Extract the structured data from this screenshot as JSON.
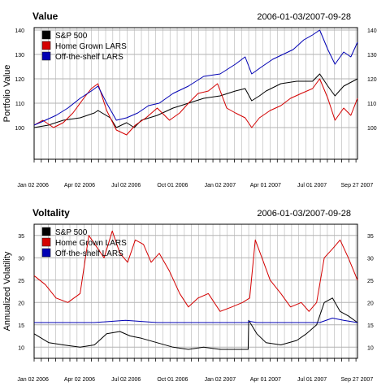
{
  "colors": {
    "sp500": "#000000",
    "home_grown": "#d40000",
    "off_the_shelf": "#0000b4",
    "grid": "#b3b3b3",
    "frame": "#000000"
  },
  "chart_data": [
    {
      "type": "line",
      "title": "Value",
      "date_range": "2006-01-03/2007-09-28",
      "ylabel": "Portfolio Value",
      "xlabel": "",
      "x_tick_labels": [
        "Jan 02 2006",
        "Apr 02 2006",
        "Jul 02 2006",
        "Oct 01 2006",
        "Jan 02 2007",
        "Apr 01 2007",
        "Jul 01 2007",
        "Sep 27 2007"
      ],
      "x_ticks": [
        "2006-01-02",
        "2006-04-02",
        "2006-07-02",
        "2006-10-01",
        "2007-01-02",
        "2007-04-01",
        "2007-07-01",
        "2007-09-27"
      ],
      "xlim": [
        "2006-01-03",
        "2007-09-28"
      ],
      "ylim": [
        87,
        141
      ],
      "y_ticks": [
        100,
        110,
        120,
        130,
        140
      ],
      "grid": true,
      "legend_position": "top-left",
      "series": [
        {
          "name": "S&P 500",
          "color_key": "sp500",
          "x": [
            "2006-01-03",
            "2006-01-31",
            "2006-03-01",
            "2006-04-03",
            "2006-05-01",
            "2006-05-08",
            "2006-06-01",
            "2006-06-13",
            "2006-07-03",
            "2006-07-18",
            "2006-08-01",
            "2006-09-01",
            "2006-10-02",
            "2006-11-01",
            "2006-12-01",
            "2007-01-02",
            "2007-02-01",
            "2007-02-20",
            "2007-03-05",
            "2007-03-20",
            "2007-04-02",
            "2007-05-01",
            "2007-06-01",
            "2007-07-02",
            "2007-07-16",
            "2007-08-01",
            "2007-08-15",
            "2007-09-01",
            "2007-09-28"
          ],
          "y": [
            100,
            101,
            103,
            104,
            106,
            107,
            104,
            100,
            102,
            100,
            103,
            105,
            108,
            110,
            112,
            113,
            115,
            116,
            111,
            113,
            115,
            118,
            119,
            119,
            122,
            117,
            113,
            117,
            120
          ]
        },
        {
          "name": "Home Grown LARS",
          "color_key": "home_grown",
          "x": [
            "2006-01-03",
            "2006-01-20",
            "2006-02-10",
            "2006-03-01",
            "2006-03-20",
            "2006-04-10",
            "2006-04-25",
            "2006-05-08",
            "2006-05-25",
            "2006-06-13",
            "2006-07-03",
            "2006-07-20",
            "2006-08-10",
            "2006-09-01",
            "2006-09-25",
            "2006-10-15",
            "2006-11-01",
            "2006-11-20",
            "2006-12-10",
            "2006-12-28",
            "2007-01-15",
            "2007-02-01",
            "2007-02-20",
            "2007-03-05",
            "2007-03-20",
            "2007-04-10",
            "2007-05-01",
            "2007-05-20",
            "2007-06-10",
            "2007-07-02",
            "2007-07-16",
            "2007-08-01",
            "2007-08-15",
            "2007-09-01",
            "2007-09-15",
            "2007-09-28"
          ],
          "y": [
            101,
            103,
            100,
            102,
            106,
            112,
            116,
            118,
            107,
            99,
            97,
            101,
            104,
            108,
            103,
            106,
            110,
            114,
            115,
            118,
            108,
            106,
            104,
            100,
            104,
            107,
            109,
            112,
            114,
            116,
            120,
            112,
            103,
            108,
            105,
            112
          ]
        },
        {
          "name": "Off-the-shelf LARS",
          "color_key": "off_the_shelf",
          "x": [
            "2006-01-03",
            "2006-01-25",
            "2006-02-15",
            "2006-03-10",
            "2006-04-03",
            "2006-04-25",
            "2006-05-08",
            "2006-05-25",
            "2006-06-13",
            "2006-07-03",
            "2006-07-25",
            "2006-08-15",
            "2006-09-05",
            "2006-10-02",
            "2006-11-01",
            "2006-12-01",
            "2007-01-02",
            "2007-02-01",
            "2007-02-20",
            "2007-03-05",
            "2007-03-25",
            "2007-04-15",
            "2007-05-05",
            "2007-05-25",
            "2007-06-15",
            "2007-07-02",
            "2007-07-16",
            "2007-08-01",
            "2007-08-15",
            "2007-09-01",
            "2007-09-15",
            "2007-09-28"
          ],
          "y": [
            101,
            103,
            105,
            108,
            112,
            115,
            117,
            110,
            103,
            104,
            106,
            109,
            110,
            114,
            117,
            121,
            122,
            126,
            129,
            122,
            125,
            128,
            130,
            132,
            136,
            138,
            140,
            132,
            126,
            131,
            129,
            135
          ]
        }
      ]
    },
    {
      "type": "line",
      "title": "Voltality",
      "date_range": "2006-01-03/2007-09-28",
      "ylabel": "Annualized Volatility",
      "xlabel": "",
      "x_tick_labels": [
        "Jan 02 2006",
        "Apr 02 2006",
        "Jul 02 2006",
        "Oct 01 2006",
        "Jan 02 2007",
        "Apr 01 2007",
        "Jul 01 2007",
        "Sep 27 2007"
      ],
      "x_ticks": [
        "2006-01-02",
        "2006-04-02",
        "2006-07-02",
        "2006-10-01",
        "2007-01-02",
        "2007-04-01",
        "2007-07-01",
        "2007-09-27"
      ],
      "xlim": [
        "2006-01-03",
        "2007-09-28"
      ],
      "ylim": [
        7.5,
        37.5
      ],
      "y_ticks": [
        10,
        15,
        20,
        25,
        30,
        35
      ],
      "grid": true,
      "legend_position": "top-left",
      "series": [
        {
          "name": "S&P 500",
          "color_key": "sp500",
          "x": [
            "2006-01-03",
            "2006-02-01",
            "2006-03-01",
            "2006-04-03",
            "2006-05-01",
            "2006-05-25",
            "2006-06-20",
            "2006-07-10",
            "2006-08-01",
            "2006-09-01",
            "2006-10-02",
            "2006-11-01",
            "2006-12-01",
            "2007-01-02",
            "2007-02-01",
            "2007-02-26",
            "2007-02-27",
            "2007-03-15",
            "2007-04-02",
            "2007-05-01",
            "2007-06-01",
            "2007-06-20",
            "2007-07-10",
            "2007-07-25",
            "2007-08-10",
            "2007-08-25",
            "2007-09-10",
            "2007-09-28"
          ],
          "y": [
            13,
            11,
            10.5,
            10,
            10.5,
            13,
            13.5,
            12.5,
            12,
            11,
            10,
            9.5,
            10,
            9.5,
            9.5,
            9.5,
            16,
            13,
            11,
            10.5,
            11.5,
            13,
            15,
            20,
            21,
            18,
            17,
            15.5
          ]
        },
        {
          "name": "Home Grown LARS",
          "color_key": "home_grown",
          "x": [
            "2006-01-03",
            "2006-01-25",
            "2006-02-15",
            "2006-03-10",
            "2006-04-03",
            "2006-04-20",
            "2006-05-08",
            "2006-05-20",
            "2006-06-05",
            "2006-06-20",
            "2006-07-05",
            "2006-07-20",
            "2006-08-05",
            "2006-08-20",
            "2006-09-05",
            "2006-09-25",
            "2006-10-15",
            "2006-11-01",
            "2006-11-20",
            "2006-12-10",
            "2007-01-02",
            "2007-01-25",
            "2007-02-15",
            "2007-03-01",
            "2007-03-12",
            "2007-03-25",
            "2007-04-10",
            "2007-05-01",
            "2007-05-20",
            "2007-06-10",
            "2007-06-25",
            "2007-07-10",
            "2007-07-25",
            "2007-08-10",
            "2007-08-25",
            "2007-09-10",
            "2007-09-28"
          ],
          "y": [
            26,
            24,
            21,
            20,
            22,
            35,
            32,
            30,
            36,
            31,
            29,
            34,
            33,
            29,
            31,
            27,
            22,
            19,
            21,
            22,
            18,
            19,
            20,
            21,
            34,
            30,
            25,
            22,
            19,
            20,
            18,
            20,
            30,
            32,
            34,
            30,
            25
          ]
        },
        {
          "name": "Off-the-shelf LARS",
          "color_key": "off_the_shelf",
          "x": [
            "2006-01-03",
            "2006-03-01",
            "2006-05-01",
            "2006-07-01",
            "2006-09-01",
            "2006-11-01",
            "2007-01-02",
            "2007-02-26",
            "2007-02-27",
            "2007-03-15",
            "2007-04-15",
            "2007-06-01",
            "2007-07-16",
            "2007-08-10",
            "2007-09-01",
            "2007-09-28"
          ],
          "y": [
            15.5,
            15.5,
            15.5,
            16,
            15.5,
            15.5,
            15.5,
            15.5,
            15.8,
            15.5,
            15.5,
            15.5,
            15.5,
            16.5,
            16,
            15.5
          ]
        }
      ]
    }
  ]
}
